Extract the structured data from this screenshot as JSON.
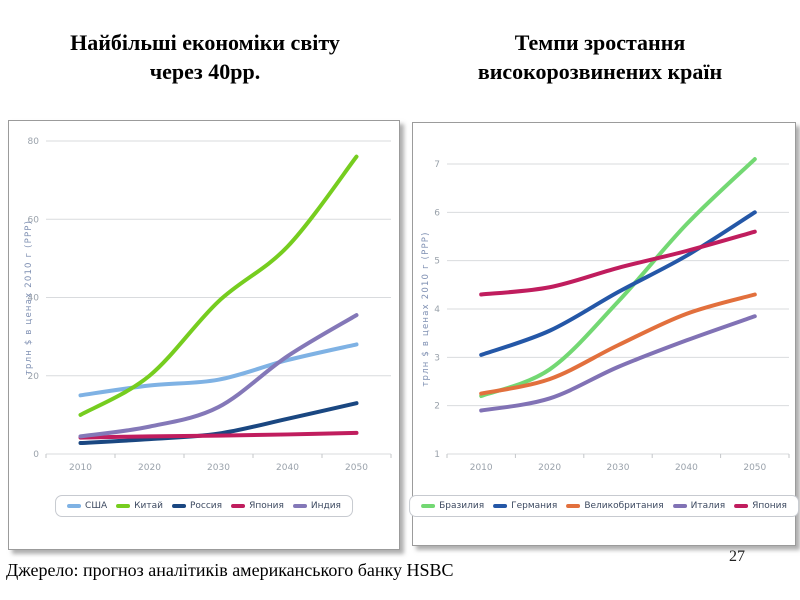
{
  "titles": {
    "left_line1": "Найбільші економіки світу",
    "left_line2": "через 40рр.",
    "right_line1": "Темпи зростання",
    "right_line2": "високорозвинених країн"
  },
  "footer": {
    "source": "Джерело: прогноз аналітиків американського банку HSBC",
    "page_number": "27"
  },
  "chart_data": [
    {
      "type": "line",
      "title": "",
      "x": [
        2010,
        2020,
        2030,
        2040,
        2050
      ],
      "xlabel": "",
      "ylabel": "трлн $ в ценах 2010 г (PPP)",
      "ylim": [
        0,
        80
      ],
      "yticks": [
        0,
        20,
        40,
        60,
        80
      ],
      "grid": true,
      "legend_position": "bottom",
      "series": [
        {
          "name": "США",
          "color": "#7fb2e4",
          "values": [
            15,
            17.5,
            19,
            24,
            28
          ]
        },
        {
          "name": "Китай",
          "color": "#76cd1f",
          "values": [
            10,
            20,
            39,
            53,
            76
          ]
        },
        {
          "name": "Россия",
          "color": "#1a4781",
          "values": [
            2.8,
            3.8,
            5.2,
            9,
            13
          ]
        },
        {
          "name": "Япония",
          "color": "#c01d5e",
          "values": [
            4.2,
            4.5,
            4.7,
            5,
            5.4
          ]
        },
        {
          "name": "Индия",
          "color": "#8478b8",
          "values": [
            4.5,
            7,
            12,
            25,
            35.5
          ]
        }
      ]
    },
    {
      "type": "line",
      "title": "",
      "x": [
        2010,
        2020,
        2030,
        2040,
        2050
      ],
      "xlabel": "",
      "ylabel": "трлн $ в ценах 2010 г (PPP)",
      "ylim": [
        1,
        7
      ],
      "yticks": [
        1,
        2,
        3,
        4,
        5,
        6,
        7
      ],
      "grid": true,
      "legend_position": "bottom",
      "series": [
        {
          "name": "Бразилия",
          "color": "#73d873",
          "values": [
            2.2,
            2.75,
            4.15,
            5.75,
            7.1
          ]
        },
        {
          "name": "Германия",
          "color": "#2457a7",
          "values": [
            3.05,
            3.55,
            4.35,
            5.1,
            6.0
          ]
        },
        {
          "name": "Великобритания",
          "color": "#e2703d",
          "values": [
            2.25,
            2.55,
            3.25,
            3.9,
            4.3
          ]
        },
        {
          "name": "Италия",
          "color": "#8172b5",
          "values": [
            1.9,
            2.15,
            2.8,
            3.35,
            3.85
          ]
        },
        {
          "name": "Япония",
          "color": "#c01d5e",
          "values": [
            4.3,
            4.45,
            4.85,
            5.2,
            5.6
          ]
        }
      ]
    }
  ]
}
